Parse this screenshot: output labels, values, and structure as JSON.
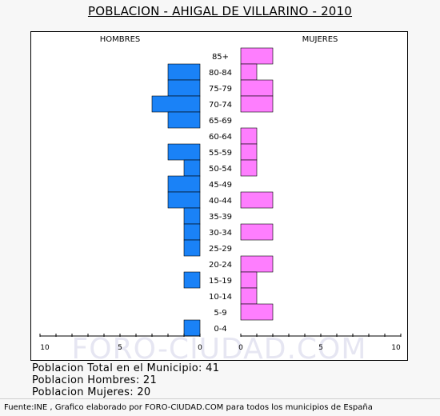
{
  "title": "POBLACION - AHIGAL DE VILLARINO - 2010",
  "headers": {
    "left": "HOMBRES",
    "right": "MUJERES"
  },
  "watermark": "FORO-CIUDAD.COM",
  "stats": {
    "total": "Poblacion Total en el Municipio: 41",
    "men": "Poblacion Hombres: 21",
    "women": "Poblacion Mujeres: 20"
  },
  "footer": "Fuente:INE , Grafico elaborado por FORO-CIUDAD.COM para todos los municipios de España",
  "colors": {
    "men": "#1a82f7",
    "women": "#fe7efe",
    "bar_border": "#000000"
  },
  "chart_data": {
    "type": "bar",
    "orientation": "horizontal-population-pyramid",
    "categories": [
      "85+",
      "80-84",
      "75-79",
      "70-74",
      "65-69",
      "60-64",
      "55-59",
      "50-54",
      "45-49",
      "40-44",
      "35-39",
      "30-34",
      "25-29",
      "20-24",
      "15-19",
      "10-14",
      "5-9",
      "0-4"
    ],
    "series": [
      {
        "name": "HOMBRES",
        "values": [
          0,
          2,
          2,
          3,
          2,
          0,
          2,
          1,
          2,
          2,
          1,
          1,
          1,
          0,
          1,
          0,
          0,
          1
        ]
      },
      {
        "name": "MUJERES",
        "values": [
          2,
          1,
          2,
          2,
          0,
          1,
          1,
          1,
          0,
          2,
          0,
          2,
          0,
          2,
          1,
          1,
          2,
          0
        ]
      }
    ],
    "xlim": [
      0,
      10
    ],
    "left_ticks": [
      "10",
      "5",
      "0"
    ],
    "right_ticks": [
      "0",
      "5",
      "10"
    ]
  }
}
